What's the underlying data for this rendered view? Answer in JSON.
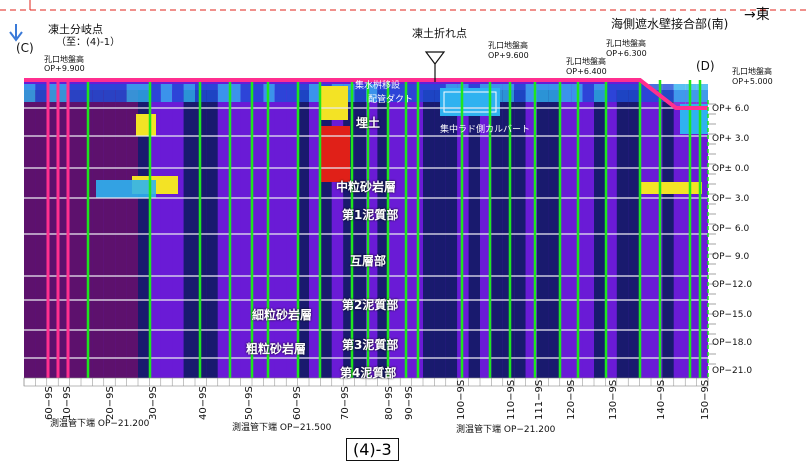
{
  "header": {
    "east_label": "→東",
    "point_c_title": "凍土分岐点",
    "point_c_sub": "（至：(4)-1）",
    "point_c_marker": "(C)",
    "point_c_elev_title": "孔口地盤高",
    "point_c_elev": "OP+9.900",
    "fold_point": "凍土折れ点",
    "wall_joint": "海側遮水壁接合部(南)",
    "point_d_marker": "(D)",
    "elev1_title": "孔口地盤高",
    "elev1": "OP+9.600",
    "elev2_title": "孔口地盤高",
    "elev2": "OP+6.400",
    "elev3_title": "孔口地盤高",
    "elev3": "OP+6.300",
    "elev4_title": "孔口地盤高",
    "elev4": "OP+5.000",
    "drain_channel": "集水桝移設",
    "pipe_duct": "配管ダクト",
    "culvert": "集中ラド側カルバート"
  },
  "layers": {
    "fill": "埋土",
    "medium_sand": "中粒砂岩層",
    "mud1": "第1泥質部",
    "alternating": "互層部",
    "mud2": "第2泥質部",
    "fine_sand": "細粒砂岩層",
    "coarse_sand": "粗粒砂岩層",
    "mud3": "第3泥質部",
    "mud4": "第4泥質部"
  },
  "op_ticks": [
    "OP+ 6.0",
    "OP+ 3.0",
    "OP± 0.0",
    "OP− 3.0",
    "OP− 6.0",
    "OP− 9.0",
    "OP−12.0",
    "OP−15.0",
    "OP−18.0",
    "OP−21.0"
  ],
  "pipe_ticks": [
    "60−9S",
    "10−9S",
    "20−9S",
    "30−9S",
    "40−9S",
    "50−9S",
    "60−9S",
    "70−9S",
    "80−9S",
    "90−9S",
    "100−9S",
    "110−9S",
    "111−9S",
    "120−9S",
    "130−9S",
    "140−9S",
    "150−9S"
  ],
  "bottom_notes": {
    "note1": "測温管下端 OP−21.200",
    "note2": "測温管下端 OP−21.500",
    "note3": "測温管下端 OP−21.200"
  },
  "figure_id": "(4)-3",
  "colors": {
    "purple": "#6a1bd6",
    "dark_purple": "#5a0f5a",
    "navy": "#0a1a5c",
    "blue": "#1e4fd8",
    "cyan": "#2fb2f0",
    "yellow": "#f3e325",
    "red": "#e02018",
    "green": "#1ee61e",
    "pink": "#ff2f8f"
  }
}
